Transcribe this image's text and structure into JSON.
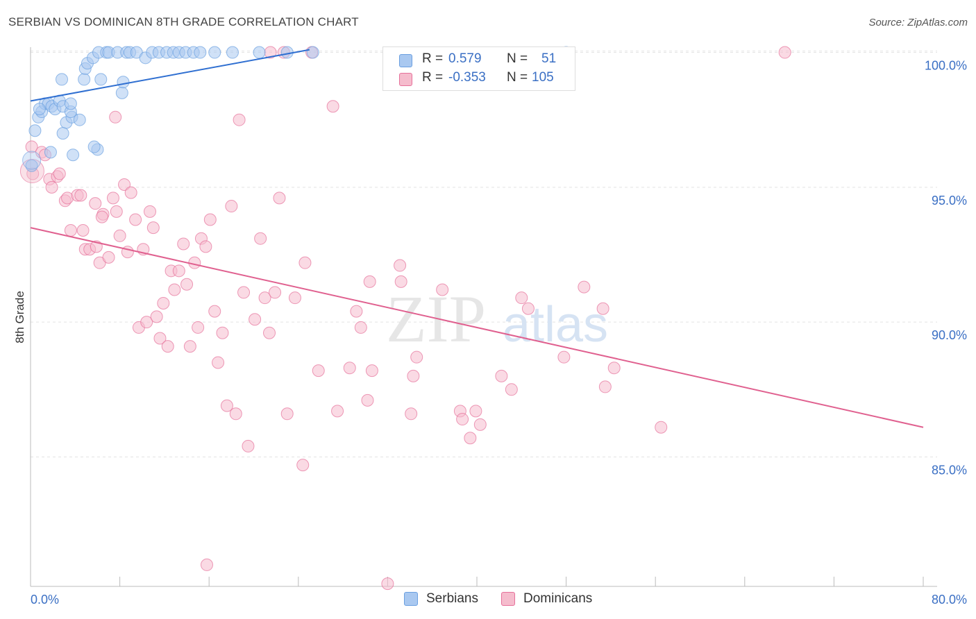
{
  "title": "SERBIAN VS DOMINICAN 8TH GRADE CORRELATION CHART",
  "source": "Source: ZipAtlas.com",
  "watermark": {
    "zip": "ZIP",
    "atlas": "atlas"
  },
  "legend": {
    "rows": [
      {
        "r_label": "R =",
        "r_value": "0.579",
        "n_label": "N =",
        "n_value": "51",
        "color": "#a9c8f0"
      },
      {
        "r_label": "R =",
        "r_value": "-0.353",
        "n_label": "N =",
        "n_value": "105",
        "color": "#f5bccd"
      }
    ]
  },
  "chart_data": {
    "type": "scatter",
    "title": "SERBIAN VS DOMINICAN 8TH GRADE CORRELATION CHART",
    "xlabel": "",
    "ylabel": "8th Grade",
    "xlim": [
      0,
      80
    ],
    "ylim": [
      80.2,
      100.4
    ],
    "x_tick_labels": [
      "0.0%",
      "80.0%"
    ],
    "y_ticks": [
      85,
      90,
      95,
      100
    ],
    "y_tick_labels": [
      "85.0%",
      "90.0%",
      "95.0%",
      "100.0%"
    ],
    "grid": true,
    "legend_position": "top-center",
    "series": [
      {
        "name": "Serbians",
        "color": "#6a9fe0",
        "fill": "#a9c8f0",
        "trend": [
          [
            0,
            98.2
          ],
          [
            25,
            100.1
          ]
        ],
        "points": [
          [
            0.1,
            95.8
          ],
          [
            0.4,
            97.1
          ],
          [
            0.7,
            97.6
          ],
          [
            1.0,
            97.8
          ],
          [
            1.3,
            98.1
          ],
          [
            1.6,
            98.1
          ],
          [
            1.9,
            98.0
          ],
          [
            2.2,
            97.9
          ],
          [
            2.6,
            98.2
          ],
          [
            2.9,
            98.0
          ],
          [
            3.2,
            97.4
          ],
          [
            2.9,
            97.0
          ],
          [
            3.7,
            97.6
          ],
          [
            3.6,
            97.8
          ],
          [
            2.8,
            99.0
          ],
          [
            4.8,
            99.0
          ],
          [
            4.9,
            99.4
          ],
          [
            5.1,
            99.6
          ],
          [
            5.6,
            99.8
          ],
          [
            6.3,
            99.0
          ],
          [
            6.1,
            100.0
          ],
          [
            6.8,
            100.0
          ],
          [
            7.0,
            100.0
          ],
          [
            7.8,
            100.0
          ],
          [
            8.6,
            100.0
          ],
          [
            8.9,
            100.0
          ],
          [
            8.2,
            98.5
          ],
          [
            9.5,
            100.0
          ],
          [
            10.3,
            99.8
          ],
          [
            10.9,
            100.0
          ],
          [
            11.5,
            100.0
          ],
          [
            12.2,
            100.0
          ],
          [
            12.8,
            100.0
          ],
          [
            13.3,
            100.0
          ],
          [
            13.9,
            100.0
          ],
          [
            14.6,
            100.0
          ],
          [
            15.2,
            100.0
          ],
          [
            16.5,
            100.0
          ],
          [
            18.1,
            100.0
          ],
          [
            20.5,
            100.0
          ],
          [
            23.0,
            100.0
          ],
          [
            25.3,
            100.0
          ],
          [
            0.8,
            97.9
          ],
          [
            1.8,
            96.3
          ],
          [
            3.8,
            96.2
          ],
          [
            6.0,
            96.4
          ],
          [
            4.4,
            97.5
          ],
          [
            5.7,
            96.5
          ],
          [
            8.3,
            98.9
          ],
          [
            3.6,
            98.1
          ],
          [
            48.0,
            100.0
          ]
        ]
      },
      {
        "name": "Dominicans",
        "color": "#e6709a",
        "fill": "#f5bccd",
        "trend": [
          [
            0,
            93.5
          ],
          [
            80,
            86.1
          ]
        ],
        "points": [
          [
            0.1,
            96.5
          ],
          [
            0.2,
            95.5
          ],
          [
            1.0,
            96.3
          ],
          [
            1.3,
            96.2
          ],
          [
            1.7,
            95.3
          ],
          [
            1.9,
            95.0
          ],
          [
            2.4,
            95.4
          ],
          [
            2.6,
            95.5
          ],
          [
            3.1,
            94.5
          ],
          [
            3.3,
            94.6
          ],
          [
            4.2,
            94.7
          ],
          [
            4.5,
            94.7
          ],
          [
            3.6,
            93.4
          ],
          [
            4.7,
            93.4
          ],
          [
            4.9,
            92.7
          ],
          [
            5.3,
            92.7
          ],
          [
            5.8,
            94.4
          ],
          [
            5.9,
            92.8
          ],
          [
            6.2,
            92.2
          ],
          [
            6.5,
            94.0
          ],
          [
            7.0,
            92.4
          ],
          [
            7.4,
            94.6
          ],
          [
            7.7,
            94.1
          ],
          [
            8.0,
            93.2
          ],
          [
            8.4,
            95.1
          ],
          [
            8.7,
            92.6
          ],
          [
            9.0,
            94.8
          ],
          [
            9.4,
            93.8
          ],
          [
            9.7,
            89.8
          ],
          [
            10.1,
            92.7
          ],
          [
            10.4,
            90.0
          ],
          [
            10.7,
            94.1
          ],
          [
            11.0,
            93.5
          ],
          [
            11.3,
            90.2
          ],
          [
            11.6,
            89.4
          ],
          [
            11.9,
            90.7
          ],
          [
            12.3,
            89.1
          ],
          [
            12.6,
            91.9
          ],
          [
            12.9,
            91.2
          ],
          [
            13.3,
            91.9
          ],
          [
            13.7,
            92.9
          ],
          [
            14.0,
            91.4
          ],
          [
            14.3,
            89.1
          ],
          [
            14.7,
            92.2
          ],
          [
            15.0,
            89.8
          ],
          [
            15.3,
            93.1
          ],
          [
            15.7,
            92.8
          ],
          [
            16.1,
            93.8
          ],
          [
            16.5,
            90.4
          ],
          [
            16.8,
            88.5
          ],
          [
            17.2,
            89.6
          ],
          [
            17.6,
            86.9
          ],
          [
            18.0,
            94.3
          ],
          [
            18.4,
            86.6
          ],
          [
            18.7,
            97.5
          ],
          [
            19.1,
            91.1
          ],
          [
            19.5,
            85.4
          ],
          [
            20.1,
            90.1
          ],
          [
            20.6,
            93.1
          ],
          [
            21.0,
            90.9
          ],
          [
            21.4,
            89.6
          ],
          [
            21.9,
            91.1
          ],
          [
            22.3,
            94.6
          ],
          [
            23.0,
            86.6
          ],
          [
            23.7,
            90.9
          ],
          [
            24.4,
            84.7
          ],
          [
            24.6,
            92.2
          ],
          [
            25.2,
            100.0
          ],
          [
            25.8,
            88.2
          ],
          [
            27.1,
            98.0
          ],
          [
            27.5,
            86.7
          ],
          [
            28.6,
            88.3
          ],
          [
            29.2,
            90.4
          ],
          [
            29.6,
            89.8
          ],
          [
            30.2,
            87.1
          ],
          [
            30.4,
            91.5
          ],
          [
            30.6,
            88.2
          ],
          [
            32.0,
            80.3
          ],
          [
            33.1,
            92.1
          ],
          [
            33.2,
            91.5
          ],
          [
            34.1,
            86.6
          ],
          [
            34.3,
            88.0
          ],
          [
            34.6,
            88.7
          ],
          [
            36.9,
            91.2
          ],
          [
            38.5,
            86.7
          ],
          [
            38.7,
            86.4
          ],
          [
            39.4,
            85.7
          ],
          [
            39.9,
            86.7
          ],
          [
            40.3,
            86.2
          ],
          [
            42.2,
            88.0
          ],
          [
            43.1,
            87.5
          ],
          [
            44.0,
            90.9
          ],
          [
            44.6,
            90.5
          ],
          [
            47.8,
            88.7
          ],
          [
            49.6,
            91.3
          ],
          [
            51.3,
            90.5
          ],
          [
            51.5,
            87.6
          ],
          [
            52.3,
            88.3
          ],
          [
            56.5,
            86.1
          ],
          [
            67.6,
            100.0
          ],
          [
            15.8,
            81.0
          ],
          [
            21.5,
            100.0
          ],
          [
            22.7,
            100.0
          ],
          [
            7.6,
            97.6
          ],
          [
            6.4,
            93.9
          ]
        ]
      }
    ]
  }
}
